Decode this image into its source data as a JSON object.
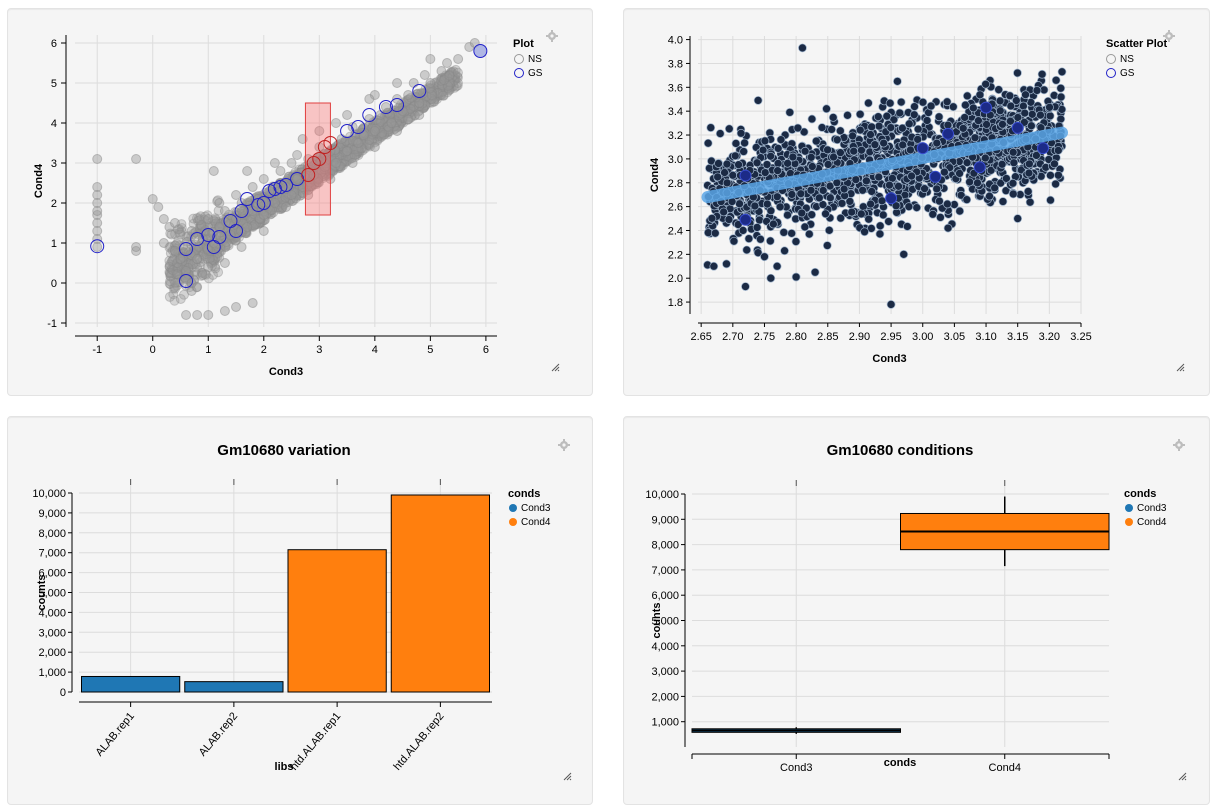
{
  "charts": [
    {
      "type": "scatter",
      "xlabel": "Cond3",
      "ylabel": "Cond4",
      "xlim": [
        -1.4,
        6.2
      ],
      "ylim": [
        -1.1,
        6.2
      ],
      "xticks": [
        "-1",
        "0",
        "1",
        "2",
        "3",
        "4",
        "5",
        "6"
      ],
      "yticks": [
        "-1",
        "0",
        "1",
        "2",
        "3",
        "4",
        "5",
        "6"
      ],
      "legend_title": "Plot",
      "legend": [
        "NS",
        "GS"
      ],
      "ns_points": [
        [
          -1,
          3.1
        ],
        [
          -1,
          2.4
        ],
        [
          -1,
          2.2
        ],
        [
          -1,
          2.0
        ],
        [
          -1,
          1.7
        ],
        [
          -1,
          1.5
        ],
        [
          -1,
          1.3
        ],
        [
          -1,
          1.1
        ],
        [
          -1,
          0.9
        ],
        [
          -1,
          1.8
        ],
        [
          -0.3,
          3.1
        ],
        [
          -0.3,
          0.8
        ],
        [
          -0.3,
          0.9
        ],
        [
          0,
          2.1
        ],
        [
          0.1,
          1.9
        ],
        [
          0.2,
          1.6
        ],
        [
          0.3,
          1.4
        ],
        [
          0.4,
          1.5
        ],
        [
          0.2,
          1.0
        ],
        [
          0.4,
          0.8
        ],
        [
          0.5,
          0.6
        ],
        [
          0.6,
          0.3
        ],
        [
          0.6,
          0.1
        ],
        [
          0.7,
          0.0
        ],
        [
          0.7,
          -0.2
        ],
        [
          0.8,
          -0.1
        ],
        [
          0.9,
          0.2
        ],
        [
          0.9,
          1.1
        ],
        [
          0.7,
          1.3
        ],
        [
          1.0,
          1.6
        ],
        [
          1.1,
          2.8
        ],
        [
          1.1,
          1.0
        ],
        [
          1.2,
          1.4
        ],
        [
          1.3,
          1.8
        ],
        [
          1.4,
          1.2
        ],
        [
          1.5,
          2.2
        ],
        [
          1.5,
          1.6
        ],
        [
          1.6,
          2.0
        ],
        [
          1.7,
          1.4
        ],
        [
          1.8,
          2.4
        ],
        [
          1.8,
          1.8
        ],
        [
          1.9,
          2.1
        ],
        [
          2.0,
          2.6
        ],
        [
          2.0,
          1.7
        ],
        [
          2.1,
          2.3
        ],
        [
          2.2,
          2.0
        ],
        [
          2.3,
          2.8
        ],
        [
          2.4,
          2.4
        ],
        [
          2.5,
          2.2
        ],
        [
          2.5,
          3.0
        ],
        [
          2.6,
          2.6
        ],
        [
          2.7,
          2.4
        ],
        [
          2.8,
          3.1
        ],
        [
          2.9,
          2.7
        ],
        [
          3.0,
          3.4
        ],
        [
          3.1,
          2.9
        ],
        [
          3.2,
          3.3
        ],
        [
          3.3,
          3.0
        ],
        [
          3.4,
          3.6
        ],
        [
          3.5,
          3.3
        ],
        [
          3.6,
          3.9
        ],
        [
          3.7,
          3.5
        ],
        [
          3.8,
          3.7
        ],
        [
          3.9,
          4.1
        ],
        [
          4.0,
          3.8
        ],
        [
          4.1,
          4.2
        ],
        [
          4.2,
          4.4
        ],
        [
          4.3,
          4.0
        ],
        [
          4.4,
          4.6
        ],
        [
          4.5,
          4.3
        ],
        [
          4.6,
          4.7
        ],
        [
          4.7,
          5.0
        ],
        [
          4.8,
          4.5
        ],
        [
          4.9,
          5.2
        ],
        [
          5.0,
          5.0
        ],
        [
          5.2,
          5.3
        ],
        [
          5.3,
          5.5
        ],
        [
          5.5,
          5.6
        ],
        [
          5.7,
          5.9
        ],
        [
          5.8,
          6.0
        ],
        [
          0.6,
          -0.8
        ],
        [
          0.8,
          -0.8
        ],
        [
          1.0,
          -0.8
        ],
        [
          1.3,
          -0.7
        ],
        [
          1.5,
          -0.6
        ],
        [
          1.8,
          -0.5
        ],
        [
          1.7,
          2.8
        ],
        [
          2.2,
          3.0
        ],
        [
          2.6,
          3.2
        ],
        [
          3.0,
          3.8
        ],
        [
          3.5,
          4.2
        ],
        [
          4.0,
          4.7
        ],
        [
          4.4,
          5.0
        ],
        [
          5.0,
          5.6
        ],
        [
          1.3,
          0.5
        ],
        [
          1.6,
          0.9
        ],
        [
          2.0,
          1.3
        ],
        [
          2.4,
          1.9
        ],
        [
          2.8,
          2.2
        ],
        [
          3.2,
          2.6
        ],
        [
          3.6,
          3.0
        ],
        [
          4.0,
          3.4
        ],
        [
          4.4,
          3.8
        ],
        [
          4.8,
          4.2
        ],
        [
          1.0,
          0.4
        ],
        [
          0.8,
          0.6
        ],
        [
          1.2,
          2.0
        ],
        [
          2.7,
          3.6
        ],
        [
          3.3,
          4.0
        ],
        [
          3.9,
          4.6
        ]
      ],
      "gs_points": [
        [
          -1,
          0.92
        ],
        [
          0.6,
          0.05
        ],
        [
          0.6,
          0.85
        ],
        [
          0.8,
          1.1
        ],
        [
          1.0,
          1.2
        ],
        [
          1.1,
          0.9
        ],
        [
          1.2,
          1.15
        ],
        [
          1.4,
          1.55
        ],
        [
          1.5,
          1.3
        ],
        [
          1.6,
          1.8
        ],
        [
          1.7,
          2.1
        ],
        [
          1.9,
          1.95
        ],
        [
          2.0,
          2.0
        ],
        [
          2.1,
          2.3
        ],
        [
          2.2,
          2.35
        ],
        [
          2.3,
          2.4
        ],
        [
          2.4,
          2.45
        ],
        [
          2.6,
          2.6
        ],
        [
          2.8,
          2.7
        ],
        [
          2.9,
          3.0
        ],
        [
          3.0,
          3.1
        ],
        [
          3.1,
          3.4
        ],
        [
          3.2,
          3.5
        ],
        [
          3.5,
          3.8
        ],
        [
          3.7,
          3.9
        ],
        [
          3.9,
          4.2
        ],
        [
          4.2,
          4.4
        ],
        [
          4.4,
          4.45
        ],
        [
          4.8,
          4.8
        ],
        [
          5.9,
          5.8
        ]
      ],
      "brush": {
        "x": [
          2.75,
          3.2
        ],
        "y": [
          1.7,
          4.5
        ]
      }
    },
    {
      "type": "scatter",
      "xlabel": "Cond3",
      "ylabel": "Cond4",
      "xlim": [
        2.645,
        3.25
      ],
      "ylim": [
        1.7,
        4.03
      ],
      "xticks": [
        "2.65",
        "2.70",
        "2.75",
        "2.80",
        "2.85",
        "2.90",
        "2.95",
        "3.00",
        "3.05",
        "3.10",
        "3.15",
        "3.20",
        "3.25"
      ],
      "yticks": [
        "1.8",
        "2.0",
        "2.2",
        "2.4",
        "2.6",
        "2.8",
        "3.0",
        "3.2",
        "3.4",
        "3.6",
        "3.8",
        "4.0"
      ],
      "legend_title": "Scatter Plot",
      "legend": [
        "NS",
        "GS"
      ],
      "outlier_points": [
        [
          2.81,
          3.93
        ],
        [
          2.95,
          1.78
        ],
        [
          2.72,
          1.93
        ],
        [
          2.76,
          2.0
        ],
        [
          2.8,
          2.01
        ],
        [
          2.83,
          2.05
        ],
        [
          2.77,
          2.1
        ],
        [
          2.67,
          2.1
        ],
        [
          2.69,
          2.12
        ],
        [
          2.74,
          3.49
        ],
        [
          2.79,
          3.39
        ],
        [
          2.96,
          3.65
        ],
        [
          3.22,
          3.73
        ],
        [
          3.04,
          2.42
        ],
        [
          3.15,
          2.5
        ],
        [
          2.97,
          2.2
        ],
        [
          2.75,
          2.18
        ],
        [
          3.12,
          3.58
        ]
      ],
      "trend": [
        [
          2.66,
          2.68
        ],
        [
          3.22,
          3.22
        ]
      ],
      "gs_points": [
        [
          2.72,
          2.86
        ],
        [
          2.72,
          2.49
        ],
        [
          2.95,
          2.67
        ],
        [
          3.0,
          3.09
        ],
        [
          3.02,
          2.85
        ],
        [
          3.04,
          3.21
        ],
        [
          3.1,
          3.43
        ],
        [
          3.09,
          2.93
        ],
        [
          3.15,
          3.26
        ],
        [
          3.19,
          3.09
        ]
      ]
    },
    {
      "type": "bar",
      "title": "Gm10680 variation",
      "xlabel": "libs",
      "ylabel": "counts",
      "categories": [
        "ALAB.rep1",
        "ALAB.rep2",
        "htd.ALAB.rep1",
        "htd.ALAB.rep2"
      ],
      "values": [
        780,
        520,
        7150,
        9900
      ],
      "series_of": [
        "Cond3",
        "Cond3",
        "Cond4",
        "Cond4"
      ],
      "ylim": [
        0,
        10000
      ],
      "yticks": [
        "0",
        "1,000",
        "2,000",
        "3,000",
        "4,000",
        "5,000",
        "6,000",
        "7,000",
        "8,000",
        "9,000",
        "10,000"
      ],
      "legend_title": "conds",
      "legend": [
        {
          "name": "Cond3",
          "color": "#1f77b4"
        },
        {
          "name": "Cond4",
          "color": "#ff7f0e"
        }
      ]
    },
    {
      "type": "box",
      "title": "Gm10680 conditions",
      "xlabel": "conds",
      "ylabel": "counts",
      "categories": [
        "Cond3",
        "Cond4"
      ],
      "boxes": [
        {
          "name": "Cond3",
          "min": 520,
          "q1": 580,
          "median": 650,
          "q3": 720,
          "max": 780,
          "color": "#1f77b4"
        },
        {
          "name": "Cond4",
          "min": 7150,
          "q1": 7800,
          "median": 8520,
          "q3": 9230,
          "max": 9900,
          "color": "#ff7f0e"
        }
      ],
      "ylim": [
        0,
        10000
      ],
      "yticks": [
        "1,000",
        "2,000",
        "3,000",
        "4,000",
        "5,000",
        "6,000",
        "7,000",
        "8,000",
        "9,000",
        "10,000"
      ],
      "legend_title": "conds",
      "legend": [
        {
          "name": "Cond3",
          "color": "#1f77b4"
        },
        {
          "name": "Cond4",
          "color": "#ff7f0e"
        }
      ]
    }
  ],
  "icons": {
    "settings": "gear-icon",
    "resize": "resize-handle-icon"
  }
}
